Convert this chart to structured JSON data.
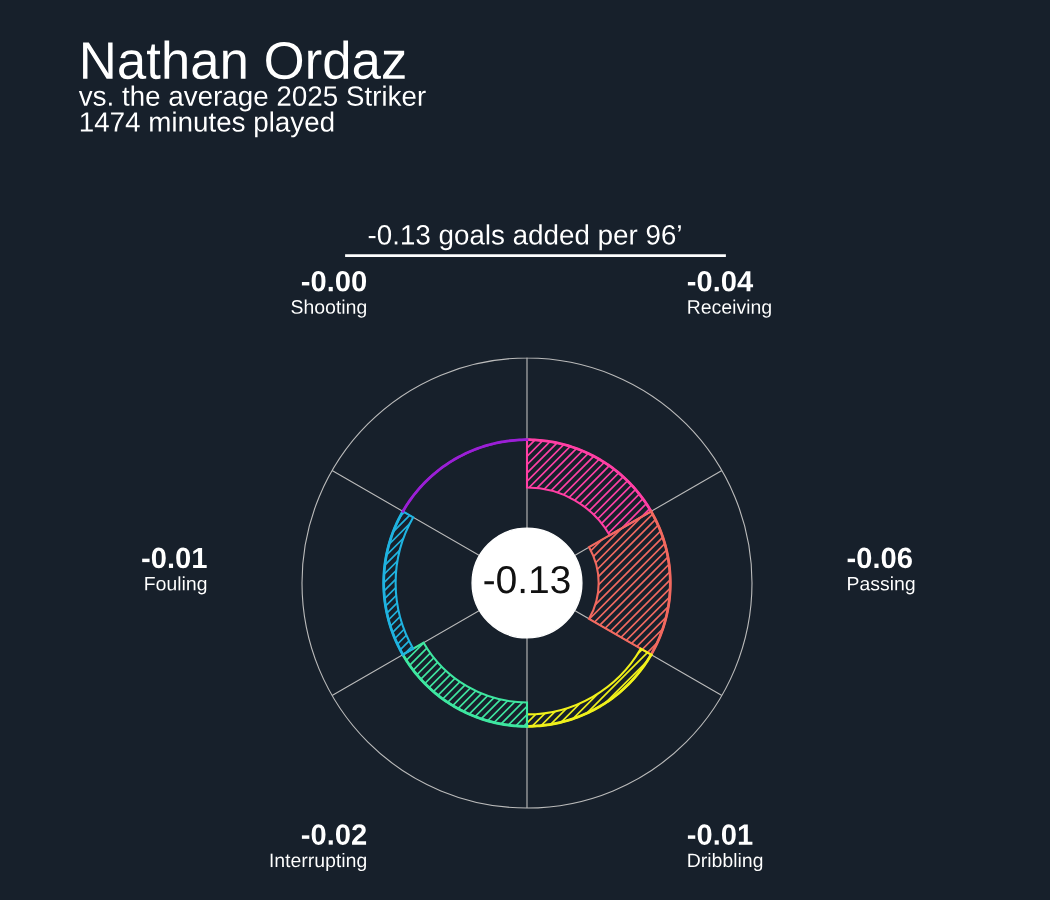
{
  "chart_data": {
    "type": "other",
    "title": "Nathan Ordaz",
    "subtitle": "vs. the average 2025 Striker\n1474 minutes played",
    "categories": [
      "Receiving",
      "Passing",
      "Dribbling",
      "Interrupting",
      "Fouling",
      "Shooting"
    ],
    "values": [
      -0.04,
      -0.06,
      -0.01,
      -0.02,
      -0.01,
      -0.0
    ],
    "value_labels": [
      "-0.04",
      "-0.06",
      "-0.01",
      "-0.02",
      "-0.01",
      "-0.00"
    ],
    "colors": [
      "#ff3fa4",
      "#f2695f",
      "#f0f01a",
      "#3ee6a0",
      "#1fb3e0",
      "#9b1fd6"
    ],
    "annotations": [
      "-0.13",
      "-0.13 goals added per 96’"
    ]
  }
}
